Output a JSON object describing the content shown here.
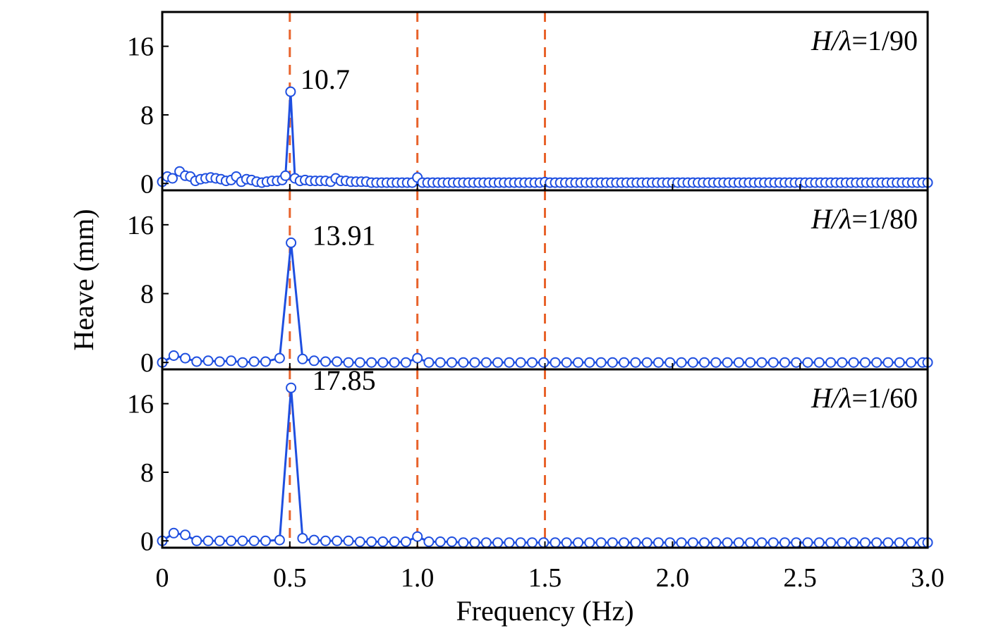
{
  "chart_data": {
    "type": "line",
    "xlabel": "Frequency (Hz)",
    "ylabel": "Heave (mm)",
    "xlim": [
      0,
      3.0
    ],
    "x_ticks": [
      "0",
      "0.5",
      "1.0",
      "1.5",
      "2.0",
      "2.5",
      "3.0"
    ],
    "x_tick_values": [
      0,
      0.5,
      1.0,
      1.5,
      2.0,
      2.5,
      3.0
    ],
    "y_ticks": [
      "0",
      "8",
      "16"
    ],
    "y_tick_values": [
      0,
      8,
      16
    ],
    "ylim": [
      -0.8,
      20
    ],
    "reference_lines_x": [
      0.5,
      1.0,
      1.5
    ],
    "colors": {
      "series": "#1f4fe0",
      "reference": "#e8632b",
      "axis": "#000000"
    },
    "marker": "open-circle",
    "panels": [
      {
        "label_italic": "H/λ",
        "label_rest": "=1/90",
        "peak_label": "10.7",
        "peak": {
          "x": 0.503,
          "y": 10.7
        },
        "points": [
          [
            0.0,
            0.2
          ],
          [
            0.02,
            0.8
          ],
          [
            0.04,
            0.6
          ],
          [
            0.068,
            1.4
          ],
          [
            0.09,
            0.9
          ],
          [
            0.11,
            0.8
          ],
          [
            0.13,
            0.3
          ],
          [
            0.15,
            0.5
          ],
          [
            0.17,
            0.6
          ],
          [
            0.19,
            0.7
          ],
          [
            0.21,
            0.6
          ],
          [
            0.23,
            0.5
          ],
          [
            0.25,
            0.3
          ],
          [
            0.27,
            0.4
          ],
          [
            0.29,
            0.8
          ],
          [
            0.31,
            0.2
          ],
          [
            0.33,
            0.5
          ],
          [
            0.35,
            0.4
          ],
          [
            0.37,
            0.2
          ],
          [
            0.39,
            0.1
          ],
          [
            0.41,
            0.2
          ],
          [
            0.43,
            0.3
          ],
          [
            0.45,
            0.3
          ],
          [
            0.47,
            0.4
          ],
          [
            0.483,
            0.9
          ],
          [
            0.503,
            10.7
          ],
          [
            0.52,
            0.6
          ],
          [
            0.54,
            0.3
          ],
          [
            0.56,
            0.4
          ],
          [
            0.58,
            0.3
          ],
          [
            0.6,
            0.3
          ],
          [
            0.62,
            0.3
          ],
          [
            0.64,
            0.3
          ],
          [
            0.66,
            0.2
          ],
          [
            0.68,
            0.6
          ],
          [
            0.7,
            0.3
          ],
          [
            0.72,
            0.3
          ],
          [
            0.74,
            0.2
          ],
          [
            0.76,
            0.2
          ],
          [
            0.78,
            0.2
          ],
          [
            0.8,
            0.2
          ],
          [
            0.82,
            0.1
          ],
          [
            0.84,
            0.1
          ],
          [
            0.86,
            0.1
          ],
          [
            0.88,
            0.1
          ],
          [
            0.9,
            0.1
          ],
          [
            0.92,
            0.1
          ],
          [
            0.94,
            0.1
          ],
          [
            0.96,
            0.1
          ],
          [
            0.98,
            0.1
          ],
          [
            1.0,
            0.7
          ],
          [
            1.02,
            0.1
          ],
          [
            1.04,
            0.1
          ],
          [
            1.06,
            0.1
          ],
          [
            1.08,
            0.1
          ],
          [
            1.1,
            0.1
          ],
          [
            1.12,
            0.1
          ],
          [
            1.14,
            0.1
          ],
          [
            1.16,
            0.1
          ],
          [
            1.18,
            0.1
          ],
          [
            1.2,
            0.1
          ],
          [
            1.22,
            0.1
          ],
          [
            1.24,
            0.1
          ],
          [
            1.26,
            0.1
          ],
          [
            1.28,
            0.1
          ],
          [
            1.3,
            0.1
          ],
          [
            1.32,
            0.1
          ],
          [
            1.34,
            0.1
          ],
          [
            1.36,
            0.1
          ],
          [
            1.38,
            0.1
          ],
          [
            1.4,
            0.1
          ],
          [
            1.42,
            0.1
          ],
          [
            1.44,
            0.1
          ],
          [
            1.46,
            0.1
          ],
          [
            1.48,
            0.1
          ],
          [
            1.5,
            0.15
          ],
          [
            1.52,
            0.1
          ],
          [
            1.54,
            0.1
          ],
          [
            1.56,
            0.1
          ],
          [
            1.58,
            0.1
          ],
          [
            1.6,
            0.1
          ],
          [
            1.62,
            0.1
          ],
          [
            1.64,
            0.1
          ],
          [
            1.66,
            0.1
          ],
          [
            1.68,
            0.1
          ],
          [
            1.7,
            0.1
          ],
          [
            1.72,
            0.1
          ],
          [
            1.74,
            0.1
          ],
          [
            1.76,
            0.1
          ],
          [
            1.78,
            0.1
          ],
          [
            1.8,
            0.1
          ],
          [
            1.82,
            0.1
          ],
          [
            1.84,
            0.1
          ],
          [
            1.86,
            0.1
          ],
          [
            1.88,
            0.1
          ],
          [
            1.9,
            0.1
          ],
          [
            1.92,
            0.1
          ],
          [
            1.94,
            0.1
          ],
          [
            1.96,
            0.1
          ],
          [
            1.98,
            0.1
          ],
          [
            2.0,
            0.1
          ],
          [
            2.02,
            0.1
          ],
          [
            2.04,
            0.1
          ],
          [
            2.06,
            0.1
          ],
          [
            2.08,
            0.1
          ],
          [
            2.1,
            0.1
          ],
          [
            2.12,
            0.1
          ],
          [
            2.14,
            0.1
          ],
          [
            2.16,
            0.1
          ],
          [
            2.18,
            0.1
          ],
          [
            2.2,
            0.1
          ],
          [
            2.22,
            0.1
          ],
          [
            2.24,
            0.1
          ],
          [
            2.26,
            0.1
          ],
          [
            2.28,
            0.1
          ],
          [
            2.3,
            0.1
          ],
          [
            2.32,
            0.1
          ],
          [
            2.34,
            0.1
          ],
          [
            2.36,
            0.1
          ],
          [
            2.38,
            0.1
          ],
          [
            2.4,
            0.1
          ],
          [
            2.42,
            0.1
          ],
          [
            2.44,
            0.1
          ],
          [
            2.46,
            0.1
          ],
          [
            2.48,
            0.1
          ],
          [
            2.5,
            0.1
          ],
          [
            2.52,
            0.1
          ],
          [
            2.54,
            0.1
          ],
          [
            2.56,
            0.1
          ],
          [
            2.58,
            0.1
          ],
          [
            2.6,
            0.1
          ],
          [
            2.62,
            0.1
          ],
          [
            2.64,
            0.1
          ],
          [
            2.66,
            0.1
          ],
          [
            2.68,
            0.1
          ],
          [
            2.7,
            0.1
          ],
          [
            2.72,
            0.1
          ],
          [
            2.74,
            0.1
          ],
          [
            2.76,
            0.1
          ],
          [
            2.78,
            0.1
          ],
          [
            2.8,
            0.1
          ],
          [
            2.82,
            0.1
          ],
          [
            2.84,
            0.1
          ],
          [
            2.86,
            0.1
          ],
          [
            2.88,
            0.1
          ],
          [
            2.9,
            0.1
          ],
          [
            2.92,
            0.1
          ],
          [
            2.94,
            0.1
          ],
          [
            2.96,
            0.1
          ],
          [
            2.98,
            0.1
          ],
          [
            3.0,
            0.1
          ]
        ]
      },
      {
        "label_italic": "H/λ",
        "label_rest": "=1/80",
        "peak_label": "13.91",
        "peak": {
          "x": 0.505,
          "y": 13.91
        },
        "points": [
          [
            0.0,
            0.0
          ],
          [
            0.045,
            0.8
          ],
          [
            0.09,
            0.5
          ],
          [
            0.135,
            0.1
          ],
          [
            0.18,
            0.2
          ],
          [
            0.225,
            0.1
          ],
          [
            0.27,
            0.2
          ],
          [
            0.315,
            0.0
          ],
          [
            0.36,
            0.1
          ],
          [
            0.405,
            0.1
          ],
          [
            0.46,
            0.5
          ],
          [
            0.505,
            13.91
          ],
          [
            0.55,
            0.4
          ],
          [
            0.595,
            0.2
          ],
          [
            0.64,
            0.1
          ],
          [
            0.685,
            0.1
          ],
          [
            0.73,
            0.0
          ],
          [
            0.775,
            0.0
          ],
          [
            0.82,
            0.0
          ],
          [
            0.865,
            0.0
          ],
          [
            0.91,
            0.0
          ],
          [
            0.955,
            0.0
          ],
          [
            1.0,
            0.5
          ],
          [
            1.045,
            0.0
          ],
          [
            1.09,
            0.0
          ],
          [
            1.135,
            0.0
          ],
          [
            1.18,
            0.0
          ],
          [
            1.225,
            0.0
          ],
          [
            1.27,
            0.0
          ],
          [
            1.315,
            0.0
          ],
          [
            1.36,
            0.0
          ],
          [
            1.405,
            0.0
          ],
          [
            1.45,
            0.0
          ],
          [
            1.495,
            0.0
          ],
          [
            1.54,
            0.0
          ],
          [
            1.585,
            0.0
          ],
          [
            1.63,
            0.0
          ],
          [
            1.675,
            0.0
          ],
          [
            1.72,
            0.0
          ],
          [
            1.765,
            0.0
          ],
          [
            1.81,
            0.0
          ],
          [
            1.855,
            0.0
          ],
          [
            1.9,
            0.0
          ],
          [
            1.945,
            0.0
          ],
          [
            1.99,
            0.0
          ],
          [
            2.035,
            0.0
          ],
          [
            2.08,
            0.0
          ],
          [
            2.125,
            0.0
          ],
          [
            2.17,
            0.0
          ],
          [
            2.215,
            0.0
          ],
          [
            2.26,
            0.0
          ],
          [
            2.305,
            0.0
          ],
          [
            2.35,
            0.0
          ],
          [
            2.395,
            0.0
          ],
          [
            2.44,
            0.0
          ],
          [
            2.485,
            0.0
          ],
          [
            2.53,
            0.0
          ],
          [
            2.575,
            0.0
          ],
          [
            2.62,
            0.0
          ],
          [
            2.665,
            0.0
          ],
          [
            2.71,
            0.0
          ],
          [
            2.755,
            0.0
          ],
          [
            2.8,
            0.0
          ],
          [
            2.845,
            0.0
          ],
          [
            2.89,
            0.0
          ],
          [
            2.935,
            0.0
          ],
          [
            2.98,
            0.0
          ],
          [
            3.0,
            0.0
          ]
        ]
      },
      {
        "label_italic": "H/λ",
        "label_rest": "=1/60",
        "peak_label": "17.85",
        "peak": {
          "x": 0.505,
          "y": 17.85
        },
        "points": [
          [
            0.0,
            0.0
          ],
          [
            0.045,
            0.9
          ],
          [
            0.09,
            0.7
          ],
          [
            0.135,
            0.0
          ],
          [
            0.18,
            0.0
          ],
          [
            0.225,
            0.0
          ],
          [
            0.27,
            0.0
          ],
          [
            0.315,
            0.0
          ],
          [
            0.36,
            0.0
          ],
          [
            0.405,
            0.0
          ],
          [
            0.46,
            0.1
          ],
          [
            0.505,
            17.85
          ],
          [
            0.55,
            0.3
          ],
          [
            0.595,
            0.1
          ],
          [
            0.64,
            0.0
          ],
          [
            0.685,
            0.0
          ],
          [
            0.73,
            0.0
          ],
          [
            0.775,
            -0.1
          ],
          [
            0.82,
            -0.1
          ],
          [
            0.865,
            -0.1
          ],
          [
            0.91,
            -0.1
          ],
          [
            0.955,
            -0.1
          ],
          [
            1.0,
            0.5
          ],
          [
            1.045,
            -0.1
          ],
          [
            1.09,
            -0.1
          ],
          [
            1.135,
            -0.1
          ],
          [
            1.18,
            -0.2
          ],
          [
            1.225,
            -0.2
          ],
          [
            1.27,
            -0.2
          ],
          [
            1.315,
            -0.2
          ],
          [
            1.36,
            -0.2
          ],
          [
            1.405,
            -0.2
          ],
          [
            1.45,
            -0.2
          ],
          [
            1.495,
            -0.2
          ],
          [
            1.54,
            -0.2
          ],
          [
            1.585,
            -0.2
          ],
          [
            1.63,
            -0.2
          ],
          [
            1.675,
            -0.2
          ],
          [
            1.72,
            -0.2
          ],
          [
            1.765,
            -0.2
          ],
          [
            1.81,
            -0.2
          ],
          [
            1.855,
            -0.2
          ],
          [
            1.9,
            -0.2
          ],
          [
            1.945,
            -0.2
          ],
          [
            1.99,
            -0.2
          ],
          [
            2.035,
            -0.2
          ],
          [
            2.08,
            -0.2
          ],
          [
            2.125,
            -0.2
          ],
          [
            2.17,
            -0.2
          ],
          [
            2.215,
            -0.2
          ],
          [
            2.26,
            -0.2
          ],
          [
            2.305,
            -0.2
          ],
          [
            2.35,
            -0.2
          ],
          [
            2.395,
            -0.2
          ],
          [
            2.44,
            -0.2
          ],
          [
            2.485,
            -0.2
          ],
          [
            2.53,
            -0.2
          ],
          [
            2.575,
            -0.2
          ],
          [
            2.62,
            -0.2
          ],
          [
            2.665,
            -0.2
          ],
          [
            2.71,
            -0.2
          ],
          [
            2.755,
            -0.2
          ],
          [
            2.8,
            -0.2
          ],
          [
            2.845,
            -0.2
          ],
          [
            2.89,
            -0.2
          ],
          [
            2.935,
            -0.2
          ],
          [
            2.98,
            -0.2
          ],
          [
            3.0,
            -0.2
          ]
        ]
      }
    ]
  }
}
